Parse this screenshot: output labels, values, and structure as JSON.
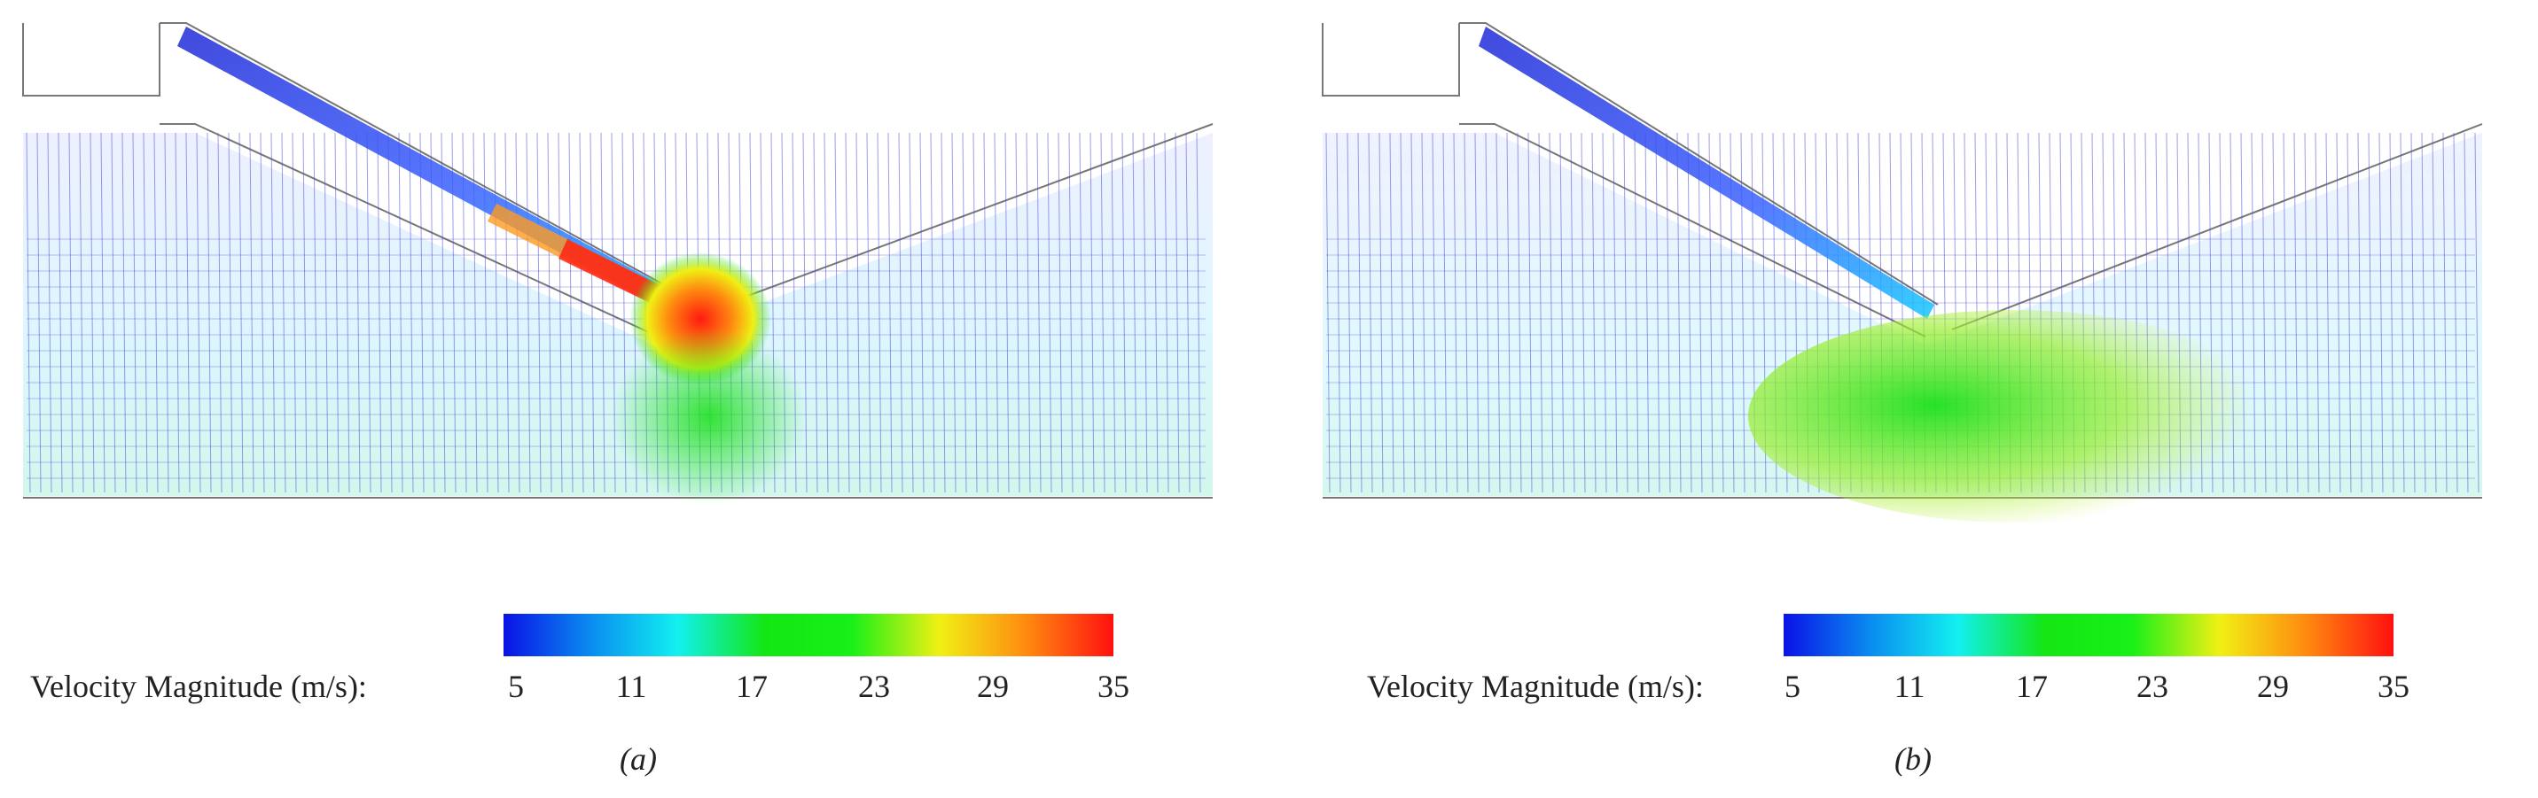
{
  "colorbar": {
    "label": "Velocity Magnitude (m/s):",
    "ticks": [
      "5",
      "11",
      "17",
      "23",
      "29",
      "35"
    ],
    "colors": [
      "#0a12e6",
      "#0a8cf0",
      "#12f0f0",
      "#14e614",
      "#18f018",
      "#f0f014",
      "#ff8a10",
      "#ff1010"
    ]
  },
  "panels": [
    {
      "id": "a",
      "caption": "(a)"
    },
    {
      "id": "b",
      "caption": "(b)"
    }
  ]
}
